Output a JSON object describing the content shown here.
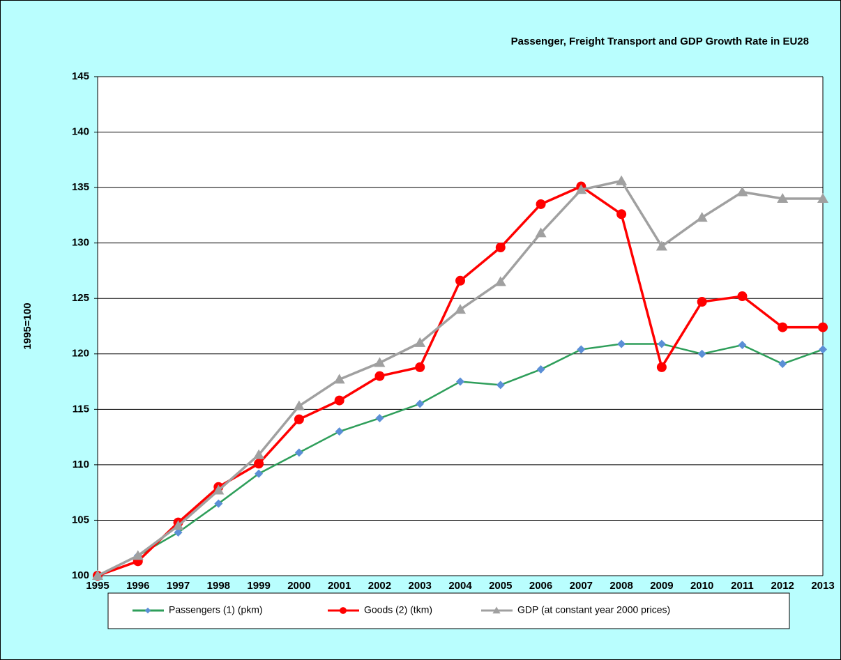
{
  "chart_data": {
    "type": "line",
    "title": "Passenger, Freight Transport and GDP Growth Rate in EU28",
    "y_label": "1995=100",
    "categories": [
      "1995",
      "1996",
      "1997",
      "1998",
      "1999",
      "2000",
      "2001",
      "2002",
      "2003",
      "2004",
      "2005",
      "2006",
      "2007",
      "2008",
      "2009",
      "2010",
      "2011",
      "2012",
      "2013"
    ],
    "series": [
      {
        "name": "Passengers (1) (pkm)",
        "color": "#2e9e5a",
        "marker": "diamond",
        "marker_color": "#5b8fd6",
        "values": [
          100,
          101.8,
          103.9,
          106.5,
          109.2,
          111.1,
          113,
          114.2,
          115.5,
          117.5,
          117.2,
          118.6,
          120.4,
          120.9,
          120.9,
          120,
          120.8,
          119.1,
          120.4
        ]
      },
      {
        "name": "Goods (2) (tkm)",
        "color": "#ff0000",
        "marker": "circle",
        "marker_color": "#ff0000",
        "values": [
          100,
          101.3,
          104.8,
          108,
          110.1,
          114.1,
          115.8,
          118,
          118.8,
          126.6,
          129.6,
          133.5,
          135.1,
          132.6,
          118.8,
          124.7,
          125.2,
          122.4,
          122.4
        ]
      },
      {
        "name": "GDP (at constant year 2000 prices)",
        "color": "#a0a0a0",
        "marker": "triangle",
        "marker_color": "#a0a0a0",
        "values": [
          100,
          101.8,
          104.5,
          107.7,
          110.9,
          115.3,
          117.7,
          119.2,
          121,
          124,
          126.5,
          130.9,
          134.8,
          135.6,
          129.7,
          132.3,
          134.6,
          134,
          134
        ]
      }
    ],
    "ylim": [
      100,
      145
    ],
    "yticks": [
      100,
      105,
      110,
      115,
      120,
      125,
      130,
      135,
      140,
      145
    ],
    "grid": true
  }
}
